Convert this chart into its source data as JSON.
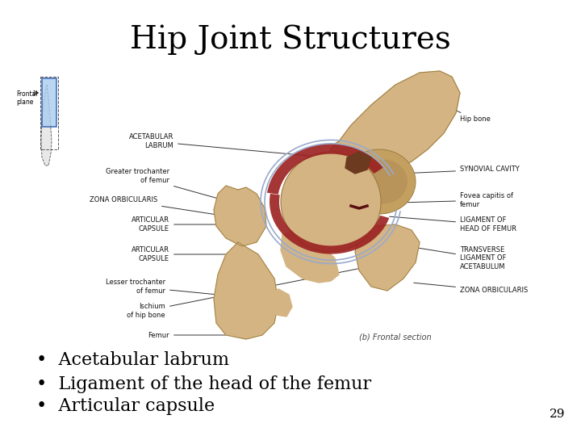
{
  "title": "Hip Joint Structures",
  "title_fontsize": 28,
  "title_font": "serif",
  "background_color": "#ffffff",
  "bullet_points": [
    "Acetabular labrum",
    "Ligament of the head of the femur",
    "Articular capsule"
  ],
  "bullet_fontsize": 16,
  "bullet_color": "#000000",
  "page_number": "29",
  "page_number_fontsize": 11,
  "caption": "(b) Frontal section",
  "caption_fontsize": 7,
  "bone_color": "#d4b483",
  "bone_edge": "#9b7e3e",
  "red_color": "#8b2020",
  "gray_color": "#8899aa",
  "label_fontsize": 6,
  "label_color": "#111111"
}
